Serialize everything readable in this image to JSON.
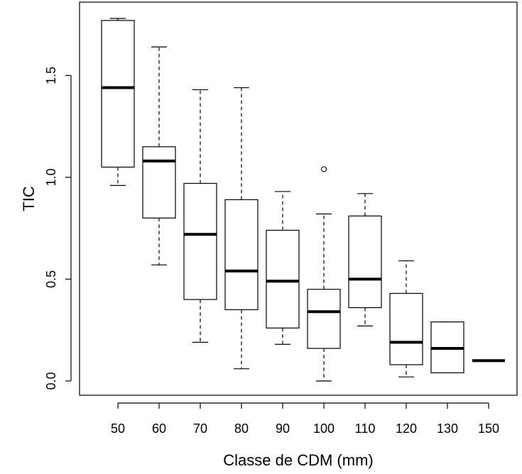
{
  "chart_data": {
    "type": "boxplot",
    "xlabel": "Classe de CDM (mm)",
    "ylabel": "TIC",
    "ylim": [
      -0.07,
      1.86
    ],
    "yticks": [
      0.0,
      0.5,
      1.0,
      1.5
    ],
    "ytick_labels": [
      "0.0",
      "0.5",
      "1.0",
      "1.5"
    ],
    "categories": [
      "50",
      "60",
      "70",
      "80",
      "90",
      "100",
      "110",
      "120",
      "130",
      "150"
    ],
    "boxes": [
      {
        "category": "50",
        "whisker_low": 0.96,
        "q1": 1.05,
        "median": 1.44,
        "q3": 1.77,
        "whisker_high": 1.78,
        "outliers": []
      },
      {
        "category": "60",
        "whisker_low": 0.57,
        "q1": 0.8,
        "median": 1.08,
        "q3": 1.15,
        "whisker_high": 1.64,
        "outliers": []
      },
      {
        "category": "70",
        "whisker_low": 0.19,
        "q1": 0.4,
        "median": 0.72,
        "q3": 0.97,
        "whisker_high": 1.43,
        "outliers": []
      },
      {
        "category": "80",
        "whisker_low": 0.06,
        "q1": 0.35,
        "median": 0.54,
        "q3": 0.89,
        "whisker_high": 1.44,
        "outliers": []
      },
      {
        "category": "90",
        "whisker_low": 0.18,
        "q1": 0.26,
        "median": 0.49,
        "q3": 0.74,
        "whisker_high": 0.93,
        "outliers": []
      },
      {
        "category": "100",
        "whisker_low": 0.0,
        "q1": 0.16,
        "median": 0.34,
        "q3": 0.45,
        "whisker_high": 0.82,
        "outliers": [
          1.04
        ]
      },
      {
        "category": "110",
        "whisker_low": 0.27,
        "q1": 0.36,
        "median": 0.5,
        "q3": 0.81,
        "whisker_high": 0.92,
        "outliers": []
      },
      {
        "category": "120",
        "whisker_low": 0.02,
        "q1": 0.08,
        "median": 0.19,
        "q3": 0.43,
        "whisker_high": 0.59,
        "outliers": []
      },
      {
        "category": "130",
        "whisker_low": 0.04,
        "q1": 0.04,
        "median": 0.16,
        "q3": 0.29,
        "whisker_high": 0.29,
        "outliers": []
      },
      {
        "category": "150",
        "whisker_low": 0.1,
        "q1": 0.1,
        "median": 0.1,
        "q3": 0.1,
        "whisker_high": 0.1,
        "outliers": []
      }
    ],
    "grid": false,
    "legend": "none"
  }
}
